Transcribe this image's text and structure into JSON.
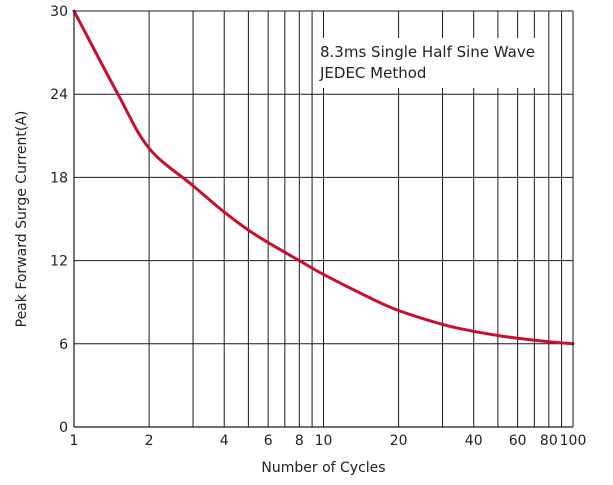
{
  "chart_data": {
    "type": "line",
    "x_scale": "log",
    "y_scale": "linear",
    "xlabel": "Number of Cycles",
    "ylabel": "Peak Forward Surge Current(A)",
    "xlim": [
      1,
      100
    ],
    "ylim": [
      0,
      30
    ],
    "x_ticks": [
      1,
      2,
      4,
      6,
      8,
      10,
      20,
      40,
      60,
      80,
      100
    ],
    "x_tick_labels": [
      "1",
      "2",
      "4",
      "6",
      "8",
      "10",
      "20",
      "40",
      "60",
      "80",
      "100"
    ],
    "x_gridlines": [
      2,
      3,
      4,
      5,
      6,
      7,
      8,
      9,
      10,
      20,
      30,
      40,
      50,
      60,
      70,
      80,
      90,
      100
    ],
    "y_ticks": [
      0,
      6,
      12,
      18,
      24,
      30
    ],
    "y_tick_labels": [
      "0",
      "6",
      "12",
      "18",
      "24",
      "30"
    ],
    "grid": true,
    "annotation_lines": [
      "8.3ms Single Half Sine Wave",
      "JEDEC Method"
    ],
    "series": [
      {
        "color": "#c8102e",
        "points": [
          {
            "x": 1,
            "y": 30
          },
          {
            "x": 1.5,
            "y": 24
          },
          {
            "x": 2,
            "y": 20.1
          },
          {
            "x": 3,
            "y": 17.4
          },
          {
            "x": 4,
            "y": 15.5
          },
          {
            "x": 5,
            "y": 14.2
          },
          {
            "x": 6,
            "y": 13.3
          },
          {
            "x": 8,
            "y": 12.0
          },
          {
            "x": 10,
            "y": 11.0
          },
          {
            "x": 15,
            "y": 9.4
          },
          {
            "x": 20,
            "y": 8.4
          },
          {
            "x": 30,
            "y": 7.4
          },
          {
            "x": 40,
            "y": 6.9
          },
          {
            "x": 50,
            "y": 6.6
          },
          {
            "x": 60,
            "y": 6.4
          },
          {
            "x": 80,
            "y": 6.15
          },
          {
            "x": 100,
            "y": 6.0
          }
        ]
      }
    ]
  }
}
